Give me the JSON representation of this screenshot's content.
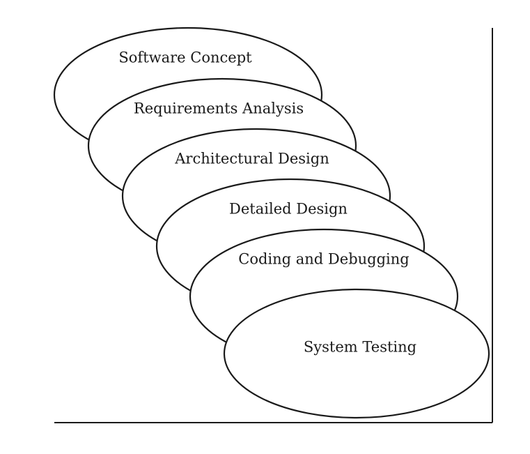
{
  "diagram": {
    "stages": [
      {
        "id": "software-concept",
        "label": "Software Concept"
      },
      {
        "id": "requirements-analysis",
        "label": "Requirements Analysis"
      },
      {
        "id": "architectural-design",
        "label": "Architectural Design"
      },
      {
        "id": "detailed-design",
        "label": "Detailed Design"
      },
      {
        "id": "coding-and-debugging",
        "label": "Coding and Debugging"
      },
      {
        "id": "system-testing",
        "label": "System Testing"
      }
    ]
  }
}
